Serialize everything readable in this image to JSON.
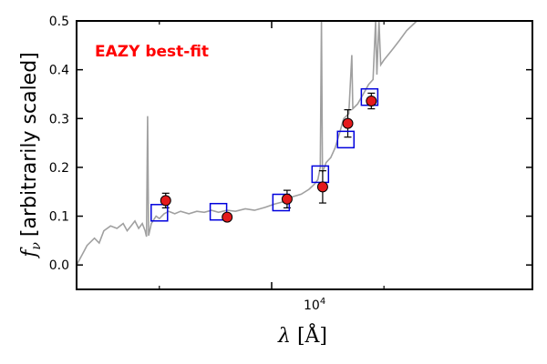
{
  "chart_data": {
    "type": "scatter",
    "annotation": "EAZY best-fit",
    "annotation_color": "#ff0000",
    "xlabel_symbol": "λ",
    "xlabel_unit": "[Å]",
    "ylabel_symbol": "f",
    "ylabel_subscript": "ν",
    "ylabel_text": "[arbitrarily scaled]",
    "x_scale": "log",
    "xlim": [
      3000,
      50000
    ],
    "ylim": [
      -0.05,
      0.5
    ],
    "y_ticks": [
      0.0,
      0.1,
      0.2,
      0.3,
      0.4,
      0.5
    ],
    "y_tick_labels": [
      "0.0",
      "0.1",
      "0.2",
      "0.3",
      "0.4",
      "0.5"
    ],
    "x_tick_label_base": "10",
    "x_tick_label_exp": "4",
    "x_major_tick": 10000,
    "x_minor_ticks": [
      5000,
      20000
    ],
    "colors": {
      "sed": "#a0a0a0",
      "observed": "#e41a1c",
      "model": "#0000dd"
    },
    "series": [
      {
        "role": "observed",
        "points": [
          {
            "x": 5200,
            "y": 0.132,
            "yerr": 0.015
          },
          {
            "x": 7600,
            "y": 0.098,
            "yerr": 0.006
          },
          {
            "x": 11000,
            "y": 0.135,
            "yerr": 0.018
          },
          {
            "x": 13700,
            "y": 0.16,
            "yerr": 0.033
          },
          {
            "x": 16000,
            "y": 0.29,
            "yerr": 0.028
          },
          {
            "x": 18500,
            "y": 0.336,
            "yerr": 0.016
          }
        ]
      },
      {
        "role": "model",
        "points": [
          {
            "x": 5000,
            "y": 0.107
          },
          {
            "x": 7200,
            "y": 0.109
          },
          {
            "x": 10600,
            "y": 0.128
          },
          {
            "x": 13500,
            "y": 0.186
          },
          {
            "x": 15800,
            "y": 0.257
          },
          {
            "x": 18300,
            "y": 0.344
          }
        ]
      },
      {
        "role": "sed",
        "points": [
          {
            "x": 3000,
            "y": 0.0
          },
          {
            "x": 3100,
            "y": 0.02
          },
          {
            "x": 3200,
            "y": 0.04
          },
          {
            "x": 3350,
            "y": 0.055
          },
          {
            "x": 3450,
            "y": 0.045
          },
          {
            "x": 3550,
            "y": 0.07
          },
          {
            "x": 3700,
            "y": 0.08
          },
          {
            "x": 3850,
            "y": 0.075
          },
          {
            "x": 4000,
            "y": 0.085
          },
          {
            "x": 4100,
            "y": 0.07
          },
          {
            "x": 4200,
            "y": 0.08
          },
          {
            "x": 4300,
            "y": 0.09
          },
          {
            "x": 4400,
            "y": 0.075
          },
          {
            "x": 4500,
            "y": 0.085
          },
          {
            "x": 4580,
            "y": 0.07
          },
          {
            "x": 4620,
            "y": 0.058
          },
          {
            "x": 4650,
            "y": 0.305
          },
          {
            "x": 4680,
            "y": 0.06
          },
          {
            "x": 4760,
            "y": 0.085
          },
          {
            "x": 4900,
            "y": 0.1
          },
          {
            "x": 5000,
            "y": 0.095
          },
          {
            "x": 5150,
            "y": 0.105
          },
          {
            "x": 5300,
            "y": 0.11
          },
          {
            "x": 5500,
            "y": 0.105
          },
          {
            "x": 5700,
            "y": 0.11
          },
          {
            "x": 6000,
            "y": 0.105
          },
          {
            "x": 6300,
            "y": 0.11
          },
          {
            "x": 6600,
            "y": 0.108
          },
          {
            "x": 6900,
            "y": 0.112
          },
          {
            "x": 7200,
            "y": 0.108
          },
          {
            "x": 7600,
            "y": 0.112
          },
          {
            "x": 8000,
            "y": 0.11
          },
          {
            "x": 8500,
            "y": 0.115
          },
          {
            "x": 9000,
            "y": 0.112
          },
          {
            "x": 9600,
            "y": 0.118
          },
          {
            "x": 10200,
            "y": 0.125
          },
          {
            "x": 10800,
            "y": 0.13
          },
          {
            "x": 11400,
            "y": 0.14
          },
          {
            "x": 12000,
            "y": 0.145
          },
          {
            "x": 12600,
            "y": 0.155
          },
          {
            "x": 13000,
            "y": 0.165
          },
          {
            "x": 13300,
            "y": 0.175
          },
          {
            "x": 13500,
            "y": 0.2
          },
          {
            "x": 13600,
            "y": 0.5
          },
          {
            "x": 13680,
            "y": 0.19
          },
          {
            "x": 14000,
            "y": 0.21
          },
          {
            "x": 14400,
            "y": 0.22
          },
          {
            "x": 14800,
            "y": 0.24
          },
          {
            "x": 15200,
            "y": 0.27
          },
          {
            "x": 15600,
            "y": 0.3
          },
          {
            "x": 16100,
            "y": 0.31
          },
          {
            "x": 16400,
            "y": 0.43
          },
          {
            "x": 16500,
            "y": 0.32
          },
          {
            "x": 17000,
            "y": 0.33
          },
          {
            "x": 17600,
            "y": 0.35
          },
          {
            "x": 18200,
            "y": 0.37
          },
          {
            "x": 18700,
            "y": 0.38
          },
          {
            "x": 19000,
            "y": 0.5
          },
          {
            "x": 19150,
            "y": 0.39
          },
          {
            "x": 19400,
            "y": 0.5
          },
          {
            "x": 19600,
            "y": 0.41
          },
          {
            "x": 20000,
            "y": 0.42
          },
          {
            "x": 21000,
            "y": 0.44
          },
          {
            "x": 22000,
            "y": 0.46
          },
          {
            "x": 23000,
            "y": 0.48
          },
          {
            "x": 24500,
            "y": 0.5
          }
        ]
      }
    ]
  }
}
